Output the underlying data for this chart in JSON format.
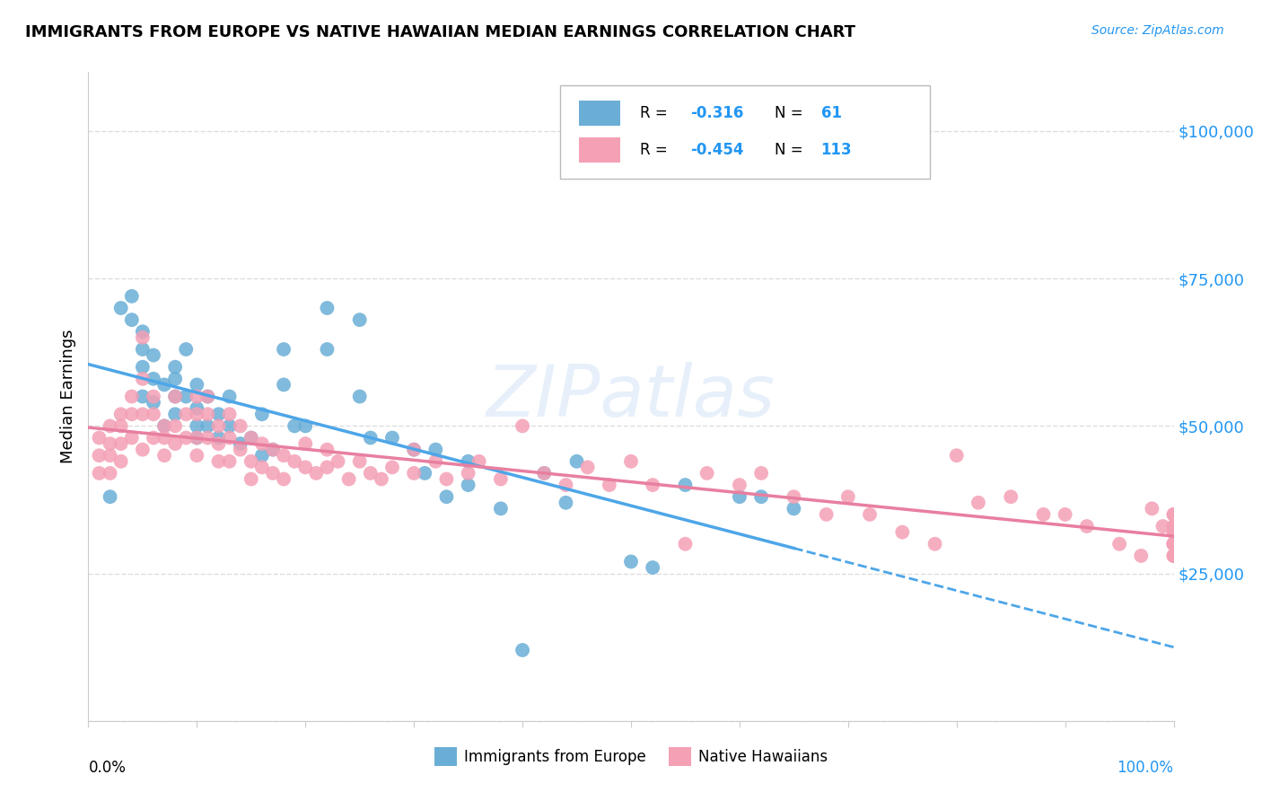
{
  "title": "IMMIGRANTS FROM EUROPE VS NATIVE HAWAIIAN MEDIAN EARNINGS CORRELATION CHART",
  "source": "Source: ZipAtlas.com",
  "ylabel": "Median Earnings",
  "yticks": [
    0,
    25000,
    50000,
    75000,
    100000
  ],
  "ytick_labels": [
    "",
    "$25,000",
    "$50,000",
    "$75,000",
    "$100,000"
  ],
  "xlim": [
    0.0,
    1.0
  ],
  "ylim": [
    0,
    110000
  ],
  "color_blue": "#6aaed6",
  "color_pink": "#f4a0b5",
  "color_line_blue": "#4da6e8",
  "color_line_pink": "#e87fa0",
  "color_accent": "#2196f3",
  "watermark": "ZIPatlas",
  "blue_scatter_x": [
    0.02,
    0.03,
    0.04,
    0.04,
    0.05,
    0.05,
    0.05,
    0.05,
    0.06,
    0.06,
    0.06,
    0.07,
    0.07,
    0.08,
    0.08,
    0.08,
    0.08,
    0.09,
    0.09,
    0.1,
    0.1,
    0.1,
    0.1,
    0.11,
    0.11,
    0.12,
    0.12,
    0.13,
    0.13,
    0.14,
    0.15,
    0.16,
    0.16,
    0.17,
    0.18,
    0.18,
    0.19,
    0.2,
    0.22,
    0.22,
    0.25,
    0.25,
    0.26,
    0.28,
    0.3,
    0.31,
    0.32,
    0.33,
    0.35,
    0.35,
    0.38,
    0.4,
    0.42,
    0.44,
    0.45,
    0.5,
    0.52,
    0.55,
    0.6,
    0.62,
    0.65
  ],
  "blue_scatter_y": [
    38000,
    70000,
    72000,
    68000,
    66000,
    63000,
    60000,
    55000,
    62000,
    58000,
    54000,
    57000,
    50000,
    60000,
    58000,
    55000,
    52000,
    63000,
    55000,
    57000,
    53000,
    50000,
    48000,
    55000,
    50000,
    52000,
    48000,
    55000,
    50000,
    47000,
    48000,
    52000,
    45000,
    46000,
    63000,
    57000,
    50000,
    50000,
    70000,
    63000,
    68000,
    55000,
    48000,
    48000,
    46000,
    42000,
    46000,
    38000,
    44000,
    40000,
    36000,
    12000,
    42000,
    37000,
    44000,
    27000,
    26000,
    40000,
    38000,
    38000,
    36000
  ],
  "pink_scatter_x": [
    0.01,
    0.01,
    0.01,
    0.02,
    0.02,
    0.02,
    0.02,
    0.03,
    0.03,
    0.03,
    0.03,
    0.04,
    0.04,
    0.04,
    0.05,
    0.05,
    0.05,
    0.05,
    0.06,
    0.06,
    0.06,
    0.07,
    0.07,
    0.07,
    0.08,
    0.08,
    0.08,
    0.09,
    0.09,
    0.1,
    0.1,
    0.1,
    0.1,
    0.11,
    0.11,
    0.11,
    0.12,
    0.12,
    0.12,
    0.13,
    0.13,
    0.13,
    0.14,
    0.14,
    0.15,
    0.15,
    0.15,
    0.16,
    0.16,
    0.17,
    0.17,
    0.18,
    0.18,
    0.19,
    0.2,
    0.2,
    0.21,
    0.22,
    0.22,
    0.23,
    0.24,
    0.25,
    0.26,
    0.27,
    0.28,
    0.3,
    0.3,
    0.32,
    0.33,
    0.35,
    0.36,
    0.38,
    0.4,
    0.42,
    0.44,
    0.46,
    0.48,
    0.5,
    0.52,
    0.55,
    0.57,
    0.6,
    0.62,
    0.65,
    0.68,
    0.7,
    0.72,
    0.75,
    0.78,
    0.8,
    0.82,
    0.85,
    0.88,
    0.9,
    0.92,
    0.95,
    0.97,
    0.98,
    0.99,
    1.0,
    1.0,
    1.0,
    1.0,
    1.0,
    1.0,
    1.0,
    1.0,
    1.0,
    1.0,
    1.0,
    1.0,
    1.0,
    1.0
  ],
  "pink_scatter_y": [
    48000,
    45000,
    42000,
    50000,
    47000,
    45000,
    42000,
    52000,
    50000,
    47000,
    44000,
    55000,
    52000,
    48000,
    65000,
    58000,
    52000,
    46000,
    55000,
    52000,
    48000,
    50000,
    48000,
    45000,
    55000,
    50000,
    47000,
    52000,
    48000,
    55000,
    52000,
    48000,
    45000,
    55000,
    52000,
    48000,
    50000,
    47000,
    44000,
    52000,
    48000,
    44000,
    50000,
    46000,
    48000,
    44000,
    41000,
    47000,
    43000,
    46000,
    42000,
    45000,
    41000,
    44000,
    47000,
    43000,
    42000,
    46000,
    43000,
    44000,
    41000,
    44000,
    42000,
    41000,
    43000,
    46000,
    42000,
    44000,
    41000,
    42000,
    44000,
    41000,
    50000,
    42000,
    40000,
    43000,
    40000,
    44000,
    40000,
    30000,
    42000,
    40000,
    42000,
    38000,
    35000,
    38000,
    35000,
    32000,
    30000,
    45000,
    37000,
    38000,
    35000,
    35000,
    33000,
    30000,
    28000,
    36000,
    33000,
    35000,
    32000,
    30000,
    30000,
    28000,
    33000,
    30000,
    28000,
    32000,
    30000,
    28000,
    35000,
    33000,
    30000
  ],
  "background_color": "#ffffff",
  "grid_color": "#dddddd"
}
